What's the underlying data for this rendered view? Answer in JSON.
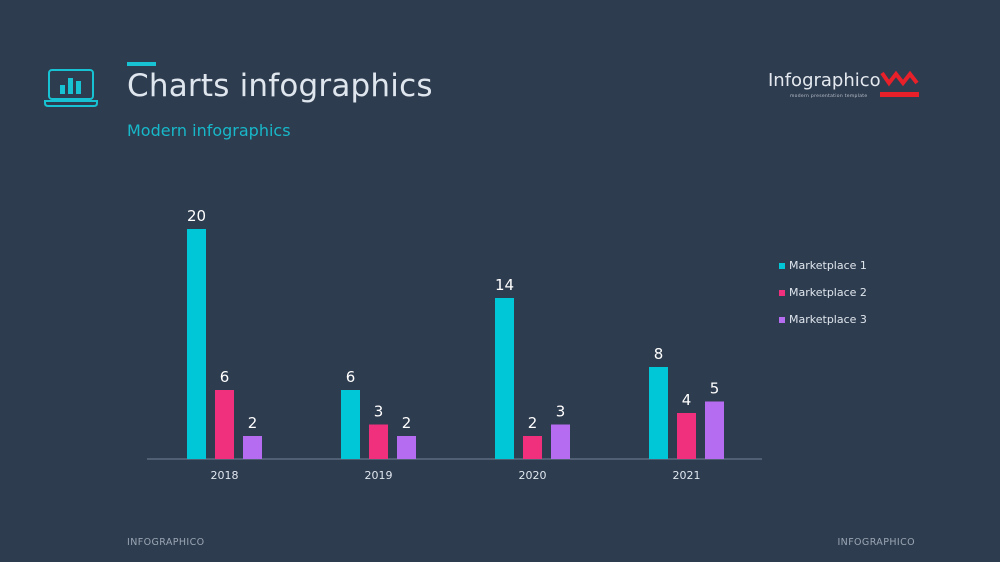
{
  "header": {
    "title": "Charts infographics",
    "subtitle": "Modern infographics",
    "icon": "laptop-chart-icon"
  },
  "brand": {
    "name": "Infographico",
    "tagline": "modern presentation template",
    "logo": "infographico-logo"
  },
  "footer": {
    "left": "INFOGRAPHICO",
    "right": "INFOGRAPHICO"
  },
  "colors": {
    "background": "#2e3c4f",
    "accent": "#17c2d3",
    "brand_red": "#e8202a",
    "series": [
      "#00c7d8",
      "#f0307c",
      "#b56cf0"
    ]
  },
  "chart_data": {
    "type": "bar",
    "categories": [
      "2018",
      "2019",
      "2020",
      "2021"
    ],
    "series": [
      {
        "name": "Marketplace 1",
        "values": [
          20,
          6,
          14,
          8
        ]
      },
      {
        "name": "Marketplace 2",
        "values": [
          6,
          3,
          2,
          4
        ]
      },
      {
        "name": "Marketplace 3",
        "values": [
          2,
          2,
          3,
          5
        ]
      }
    ],
    "ylim": [
      0,
      20
    ],
    "grid": false,
    "data_labels": true,
    "legend_position": "right"
  }
}
